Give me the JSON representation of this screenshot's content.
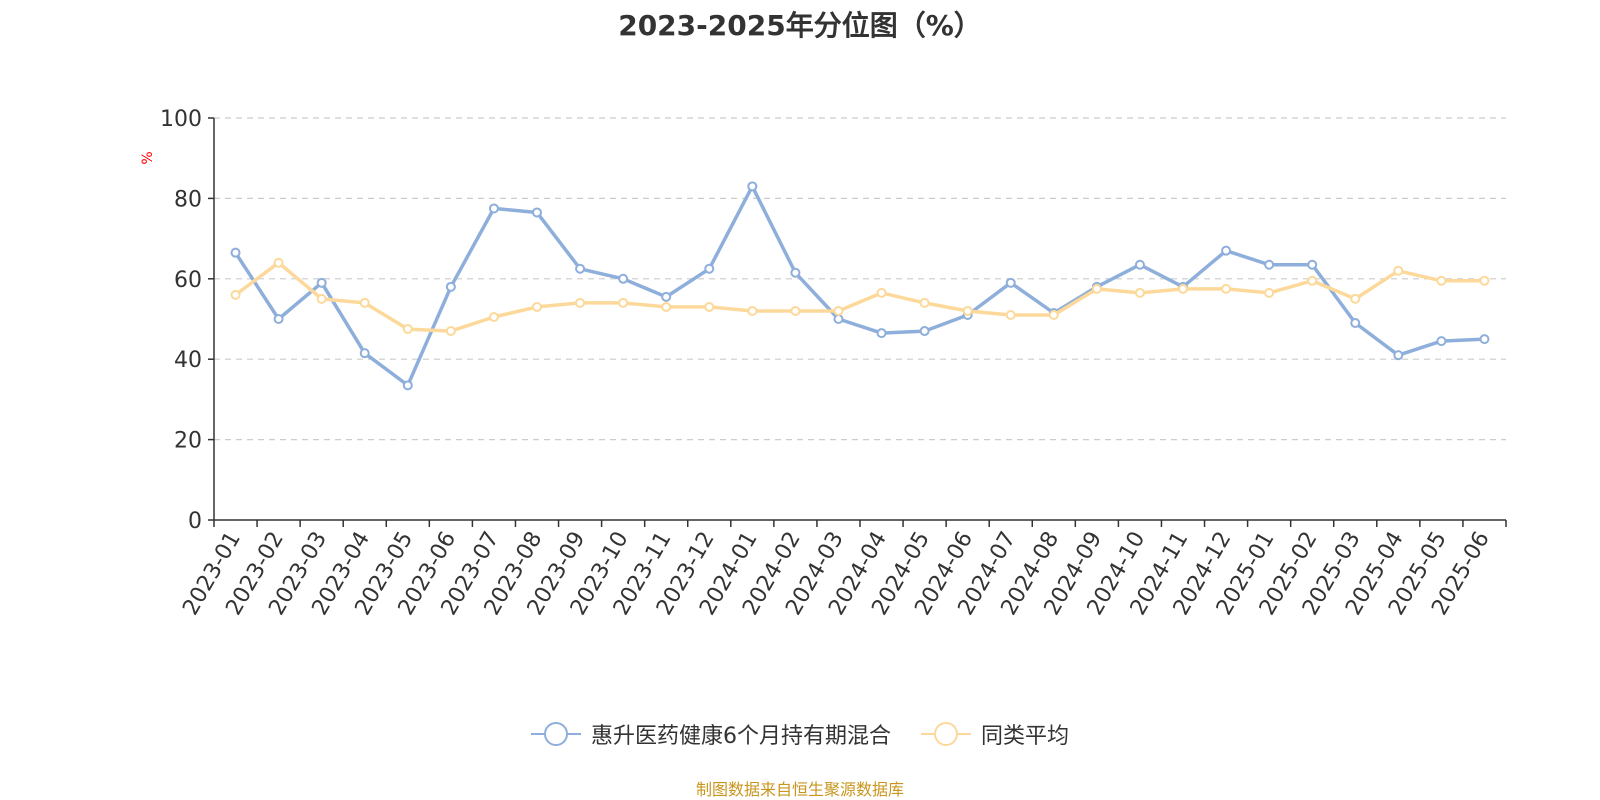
{
  "chart_data": {
    "type": "line",
    "title": "2023-2025年分位图（%）",
    "ylabel": "%",
    "xlabel": "",
    "ylim": [
      0,
      100
    ],
    "yticks": [
      0,
      20,
      40,
      60,
      80,
      100
    ],
    "grid": true,
    "legend_position": "bottom",
    "categories": [
      "2023-01",
      "2023-02",
      "2023-03",
      "2023-04",
      "2023-05",
      "2023-06",
      "2023-07",
      "2023-08",
      "2023-09",
      "2023-10",
      "2023-11",
      "2023-12",
      "2024-01",
      "2024-02",
      "2024-03",
      "2024-04",
      "2024-05",
      "2024-06",
      "2024-07",
      "2024-08",
      "2024-09",
      "2024-10",
      "2024-11",
      "2024-12",
      "2025-01",
      "2025-02",
      "2025-03",
      "2025-04",
      "2025-05",
      "2025-06"
    ],
    "series": [
      {
        "name": "惠升医药健康6个月持有期混合",
        "color": "#8eaedb",
        "values": [
          66.5,
          50,
          59,
          41.5,
          33.5,
          58,
          77.5,
          76.5,
          62.5,
          60,
          55.5,
          62.5,
          83,
          61.5,
          50,
          46.5,
          47,
          51,
          59,
          51.5,
          58,
          63.5,
          58,
          67,
          63.5,
          63.5,
          49,
          41,
          44.5,
          45
        ]
      },
      {
        "name": "同类平均",
        "color": "#fcd99b",
        "values": [
          56,
          64,
          55,
          54,
          47.5,
          47,
          50.5,
          53,
          54,
          54,
          53,
          53,
          52,
          52,
          52,
          56.5,
          54,
          52,
          51,
          51,
          57.5,
          56.5,
          57.5,
          57.5,
          56.5,
          59.5,
          55,
          62,
          59.5,
          59.5
        ]
      }
    ]
  },
  "footer": {
    "source": "制图数据来自恒生聚源数据库"
  }
}
